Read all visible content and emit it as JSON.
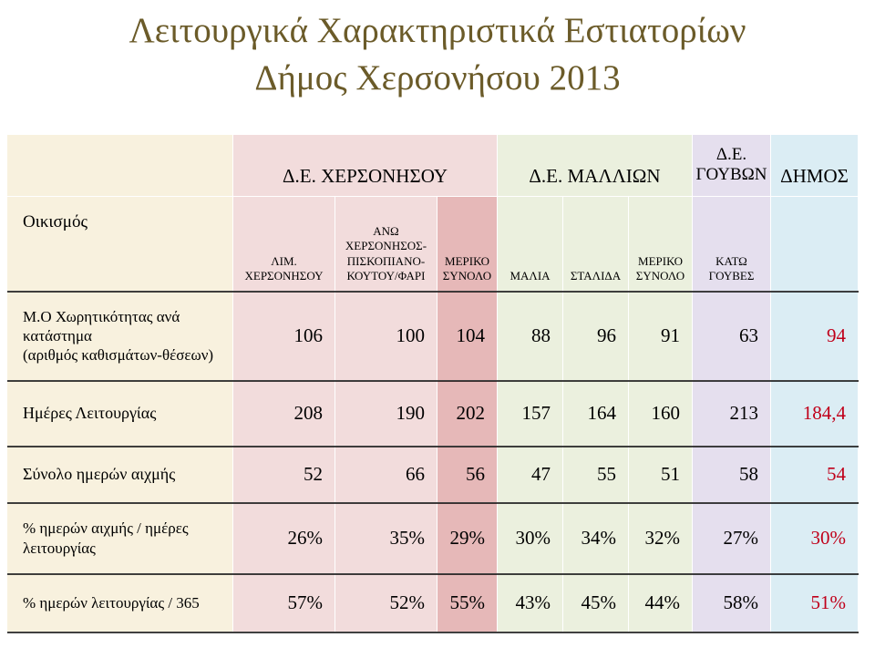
{
  "title": {
    "line1": "Λειτουργικά Χαρακτηριστικά Εστιατορίων",
    "line2": "Δήμος Χερσονήσου 2013"
  },
  "header": {
    "de_chersonisou": "Δ.Ε. ΧΕΡΣΟΝΗΣΟΥ",
    "de_malion": "Δ.Ε. ΜΑΛΛΙΩΝ",
    "de_gouvon_line1": "Δ.Ε.",
    "de_gouvon_line2": "ΓΟΥΒΩΝ",
    "dimos": "ΔΗΜΟΣ"
  },
  "subheader": {
    "label": "Οικισμός",
    "lim_chersonisou_line1": "ΛΙΜ.",
    "lim_chersonisou_line2": "ΧΕΡΣΟΝΗΣΟΥ",
    "ano_line1": "ΑΝΩ",
    "ano_line2": "ΧΕΡΣΟΝΗΣΟΣ-",
    "ano_line3": "ΠΙΣΚΟΠΙΑΝΟ-",
    "ano_line4": "ΚΟΥΤΟΥ/ΦΑΡΙ",
    "meriko1_line1": "ΜΕΡΙΚΟ",
    "meriko1_line2": "ΣΥΝΟΛΟ",
    "malia": "ΜΑΛΙΑ",
    "stalida": "ΣΤΑΛΙΔΑ",
    "meriko2_line1": "ΜΕΡΙΚΟ",
    "meriko2_line2": "ΣΥΝΟΛΟ",
    "kato_line1": "ΚΑΤΩ",
    "kato_line2": "ΓΟΥΒΕΣ"
  },
  "rows": [
    {
      "label_lines": [
        "Μ.Ο Χωρητικότητας ανά",
        "κατάστημα",
        "(αριθμός καθισμάτων-θέσεων)"
      ],
      "values": [
        "106",
        "100",
        "104",
        "88",
        "96",
        "91",
        "63",
        "94"
      ]
    },
    {
      "label_lines": [
        "Ημέρες Λειτουργίας"
      ],
      "values": [
        "208",
        "190",
        "202",
        "157",
        "164",
        "160",
        "213",
        "184,4"
      ]
    },
    {
      "label_lines": [
        "Σύνολο ημερών αιχμής"
      ],
      "values": [
        "52",
        "66",
        "56",
        "47",
        "55",
        "51",
        "58",
        "54"
      ]
    },
    {
      "label_lines": [
        "% ημερών αιχμής / ημέρες",
        "λειτουργίας"
      ],
      "values": [
        "26%",
        "35%",
        "29%",
        "30%",
        "34%",
        "32%",
        "27%",
        "30%"
      ]
    },
    {
      "label_lines": [
        "% ημερών λειτουργίας / 365"
      ],
      "values": [
        "57%",
        "52%",
        "55%",
        "43%",
        "45%",
        "44%",
        "58%",
        "51%"
      ]
    }
  ],
  "colors": {
    "title": "#6b5b29",
    "label_bg": "#f8f1de",
    "chersonisou_bg": "#f2dcdc",
    "chersonisou_total_bg": "#e6b8b8",
    "malion_bg": "#ebf0de",
    "gouvon_bg": "#e5dfee",
    "dimos_bg": "#dbedf4",
    "dimos_text": "#c0001a"
  }
}
